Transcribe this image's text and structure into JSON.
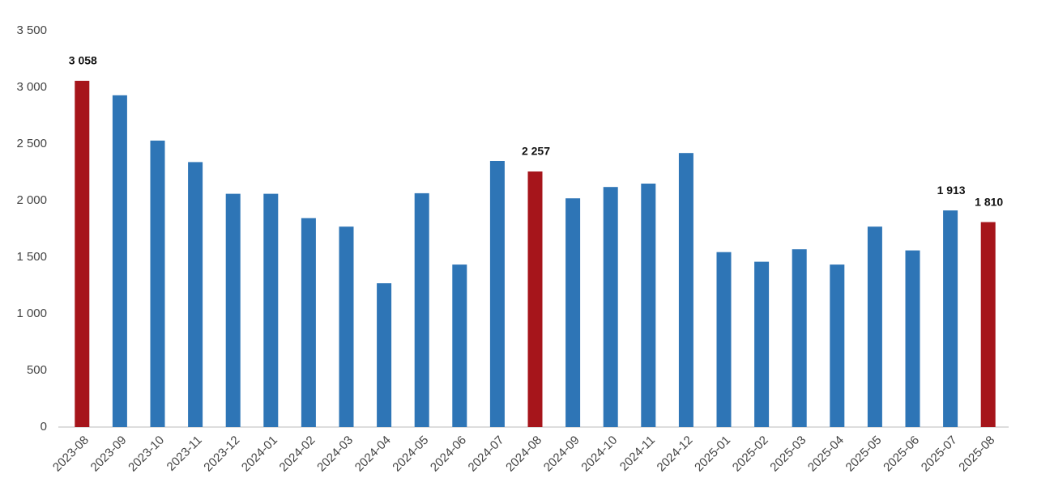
{
  "chart_data": {
    "type": "bar",
    "categories": [
      "2023-08",
      "2023-09",
      "2023-10",
      "2023-11",
      "2023-12",
      "2024-01",
      "2024-02",
      "2024-03",
      "2024-04",
      "2024-05",
      "2024-06",
      "2024-07",
      "2024-08",
      "2024-09",
      "2024-10",
      "2024-11",
      "2024-12",
      "2025-01",
      "2025-02",
      "2025-03",
      "2025-04",
      "2025-05",
      "2025-06",
      "2025-07",
      "2025-08"
    ],
    "values": [
      3058,
      2930,
      2530,
      2340,
      2060,
      2060,
      1845,
      1770,
      1270,
      2065,
      1435,
      2350,
      2257,
      2020,
      2120,
      2150,
      2420,
      1545,
      1460,
      1570,
      1435,
      1770,
      1560,
      1913,
      1810
    ],
    "value_labels": [
      "3 058",
      null,
      null,
      null,
      null,
      null,
      null,
      null,
      null,
      null,
      null,
      null,
      "2 257",
      null,
      null,
      null,
      null,
      null,
      null,
      null,
      null,
      null,
      null,
      "1 913",
      "1 810"
    ],
    "colors": [
      "#a6151b",
      "#2e75b6",
      "#2e75b6",
      "#2e75b6",
      "#2e75b6",
      "#2e75b6",
      "#2e75b6",
      "#2e75b6",
      "#2e75b6",
      "#2e75b6",
      "#2e75b6",
      "#2e75b6",
      "#a6151b",
      "#2e75b6",
      "#2e75b6",
      "#2e75b6",
      "#2e75b6",
      "#2e75b6",
      "#2e75b6",
      "#2e75b6",
      "#2e75b6",
      "#2e75b6",
      "#2e75b6",
      "#2e75b6",
      "#a6151b"
    ],
    "ylim": [
      0,
      3500
    ],
    "yticks": [
      0,
      500,
      {
        "value": 1000,
        "label": "1 000"
      },
      {
        "value": 1500,
        "label": "1 500"
      },
      {
        "value": 2000,
        "label": "2 000"
      },
      {
        "value": 2500,
        "label": "2 500"
      },
      {
        "value": 3000,
        "label": "3 000"
      },
      {
        "value": 3500,
        "label": "3 500"
      }
    ],
    "grid": false
  }
}
